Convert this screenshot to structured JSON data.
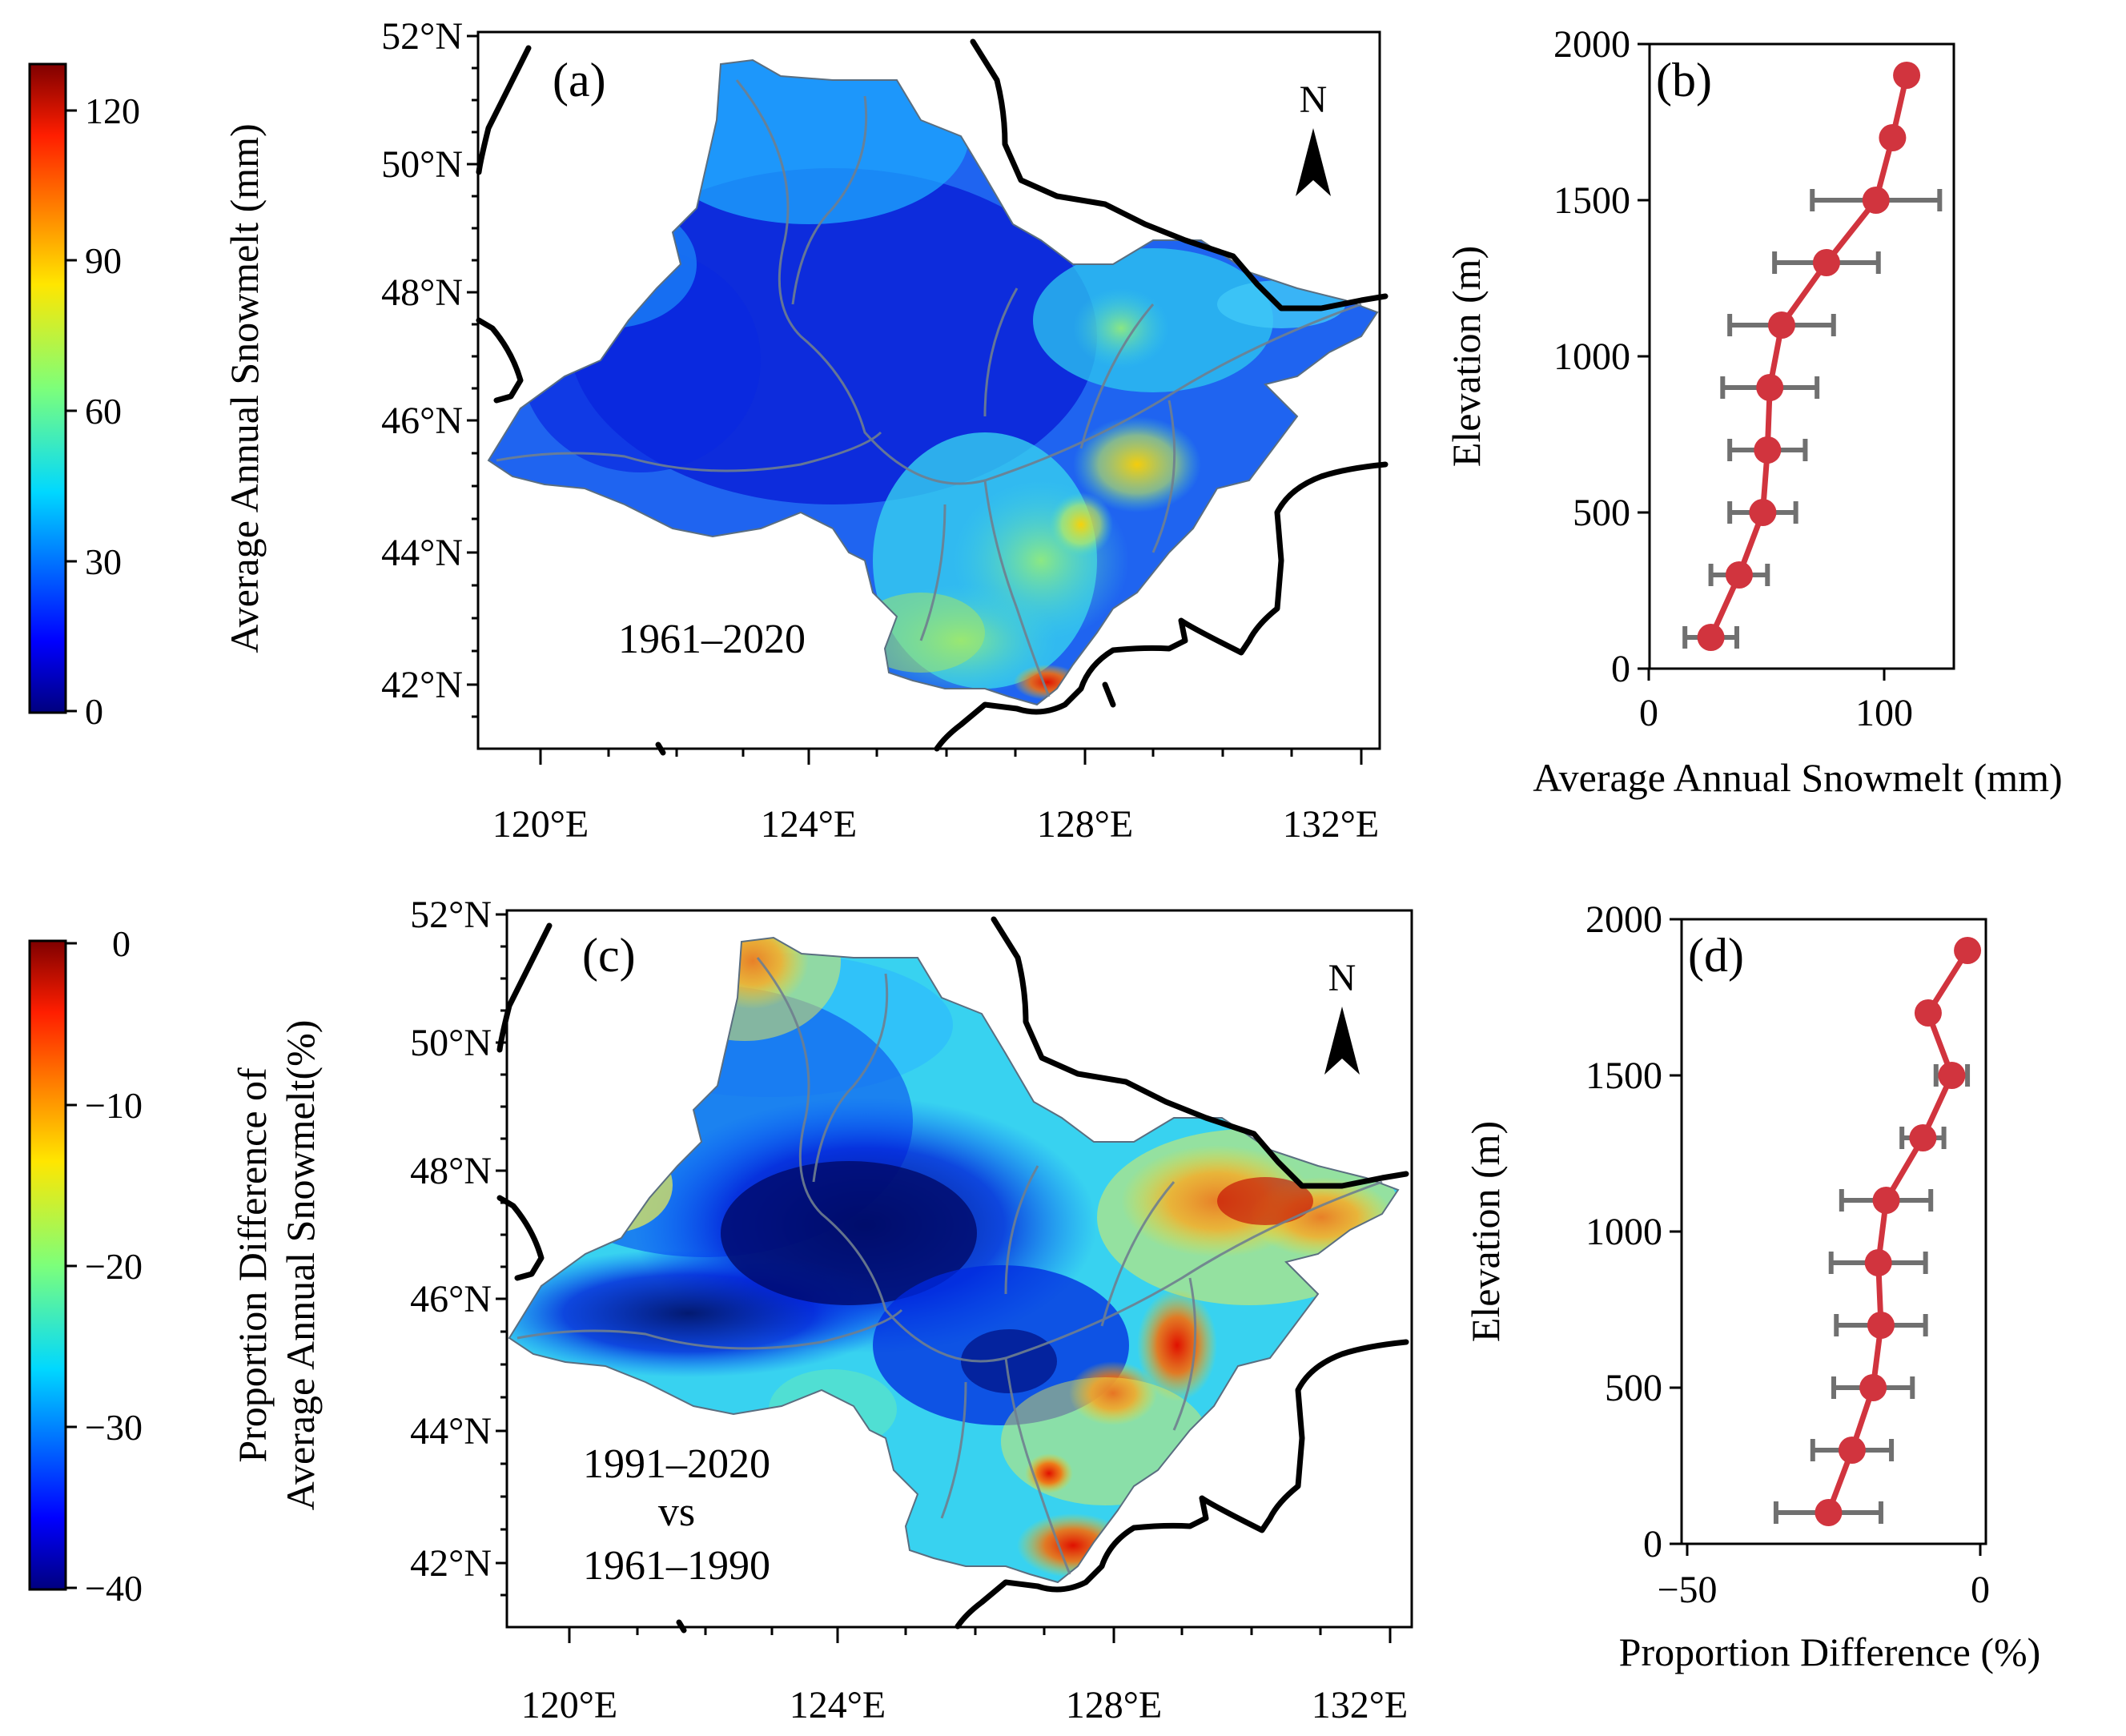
{
  "colors": {
    "marker": "#d1343e",
    "errorbar": "#707070",
    "river": "#6f7f8f",
    "border": "#000000"
  },
  "panels": {
    "a": {
      "label": "(a)",
      "period": "1961–2020",
      "north": "N",
      "colorbar": {
        "ticks": [
          "120",
          "90",
          "60",
          "30",
          "0"
        ],
        "label": "Average Annual Snowmelt (mm)",
        "range": [
          0,
          130
        ]
      },
      "lat_ticks": [
        "52°N",
        "50°N",
        "48°N",
        "46°N",
        "44°N",
        "42°N"
      ],
      "lon_ticks": [
        "120°E",
        "124°E",
        "128°E",
        "132°E"
      ]
    },
    "b": {
      "label": "(b)"
    },
    "c": {
      "label": "(c)",
      "period_line1": "1991–2020",
      "period_line2": "vs",
      "period_line3": "1961–1990",
      "north": "N",
      "colorbar": {
        "ticks": [
          "0",
          "−10",
          "−20",
          "−30",
          "−40"
        ],
        "label_line1": "Proportion Difference of",
        "label_line2": "Average Annual Snowmelt(%)",
        "range": [
          -40,
          0
        ]
      },
      "lat_ticks": [
        "52°N",
        "50°N",
        "48°N",
        "46°N",
        "44°N",
        "42°N"
      ],
      "lon_ticks": [
        "120°E",
        "124°E",
        "128°E",
        "132°E"
      ]
    },
    "d": {
      "label": "(d)"
    }
  },
  "chart_data": [
    {
      "type": "scatter",
      "panel": "b",
      "xlabel": "Average Annual Snowmelt (mm)",
      "ylabel": "Elevation (m)",
      "xlim": [
        -3,
        126
      ],
      "ylim": [
        0,
        2000
      ],
      "xticks": [
        "0",
        "100"
      ],
      "yticks": [
        "0",
        "500",
        "1000",
        "1500",
        "2000"
      ],
      "series": [
        {
          "x": [
            23,
            35,
            45,
            47,
            48,
            53,
            72,
            93,
            100,
            106
          ],
          "y": [
            100,
            300,
            500,
            700,
            900,
            1100,
            1300,
            1500,
            1700,
            1900
          ],
          "xerr": [
            11,
            12,
            14,
            16,
            20,
            22,
            22,
            27,
            0,
            0
          ]
        }
      ]
    },
    {
      "type": "scatter",
      "panel": "d",
      "xlabel": "Proportion Difference (%)",
      "ylabel": "Elevation (m)",
      "xlim": [
        -57,
        1
      ],
      "ylim": [
        0,
        2000
      ],
      "xticks": [
        "−50",
        "0"
      ],
      "yticks": [
        "0",
        "500",
        "1000",
        "1500",
        "2000"
      ],
      "series": [
        {
          "x": [
            -29,
            -24.5,
            -20.5,
            -19,
            -19.5,
            -18,
            -11,
            -5.5,
            -10,
            -2.5
          ],
          "y": [
            100,
            300,
            500,
            700,
            900,
            1100,
            1300,
            1500,
            1700,
            1900
          ],
          "xerr": [
            10,
            7.5,
            7.5,
            8.5,
            9,
            8.5,
            4,
            3,
            0,
            0
          ]
        }
      ]
    }
  ]
}
